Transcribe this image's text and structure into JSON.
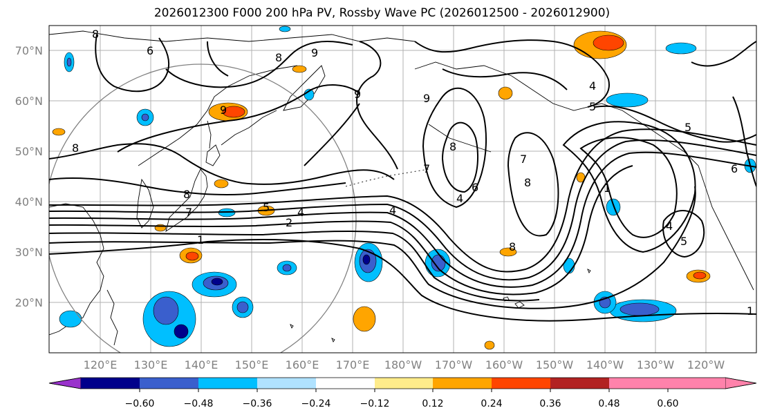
{
  "title": "2026012300 F000 200 hPa PV, Rossby Wave PC (2026012500 - 2026012900)",
  "lat_labels": [
    "70°N",
    "60°N",
    "50°N",
    "40°N",
    "30°N",
    "20°N"
  ],
  "lon_labels": [
    "120°E",
    "130°E",
    "140°E",
    "150°E",
    "160°E",
    "170°E",
    "180°W",
    "170°W",
    "160°W",
    "150°W",
    "140°W",
    "130°W",
    "120°W"
  ],
  "colorbar": {
    "ticks": [
      "−0.60",
      "−0.48",
      "−0.36",
      "−0.24",
      "−0.12",
      "0.12",
      "0.24",
      "0.36",
      "0.48",
      "0.60"
    ],
    "colors": [
      "#9932CC",
      "#00008B",
      "#3A5FCD",
      "#00BFFF",
      "#B0E2FF",
      "#FFFFFF",
      "#FFEC8B",
      "#FFA500",
      "#FF4500",
      "#B22222",
      "#FF82AB"
    ]
  },
  "contour_labels": [
    "6",
    "8",
    "9",
    "8",
    "9",
    "9",
    "8",
    "8",
    "7",
    "5",
    "4",
    "2",
    "1",
    "4",
    "7",
    "8",
    "9",
    "4",
    "6",
    "7",
    "8",
    "8",
    "1",
    "4",
    "5",
    "5",
    "4",
    "5",
    "6",
    "1"
  ]
}
